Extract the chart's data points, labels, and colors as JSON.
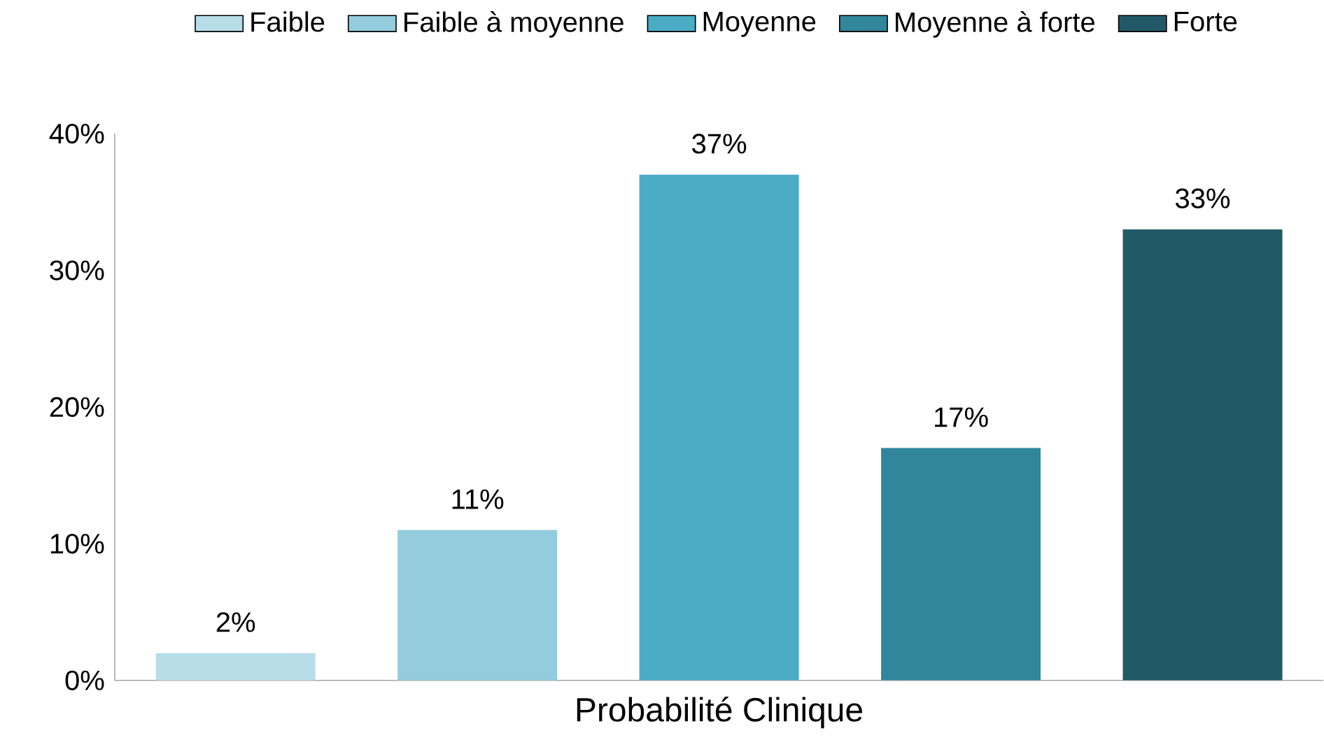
{
  "chart_data": {
    "type": "bar",
    "xlabel": "Probabilité Clinique",
    "categories": [
      null
    ],
    "series": [
      {
        "name": "Faible",
        "color": "#b7dee8",
        "values": [
          2
        ],
        "value_labels": [
          "2%"
        ]
      },
      {
        "name": "Faible à moyenne",
        "color": "#93cddd",
        "values": [
          11
        ],
        "value_labels": [
          "11%"
        ]
      },
      {
        "name": "Moyenne",
        "color": "#4bacc6",
        "values": [
          37
        ],
        "value_labels": [
          "37%"
        ]
      },
      {
        "name": "Moyenne à forte",
        "color": "#31869b",
        "values": [
          17
        ],
        "value_labels": [
          "17%"
        ]
      },
      {
        "name": "Forte",
        "color": "#215967",
        "values": [
          33
        ],
        "value_labels": [
          "33%"
        ]
      }
    ],
    "ylim": [
      0,
      40
    ],
    "yticks": [
      {
        "value": 0,
        "label": "0%"
      },
      {
        "value": 10,
        "label": "10%"
      },
      {
        "value": 20,
        "label": "20%"
      },
      {
        "value": 30,
        "label": "30%"
      },
      {
        "value": 40,
        "label": "40%"
      }
    ],
    "legend": "top",
    "grid": false
  }
}
